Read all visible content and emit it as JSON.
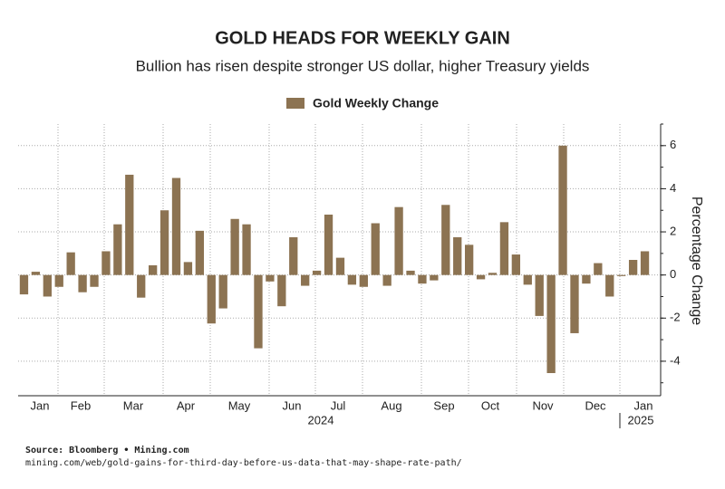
{
  "chart_data": {
    "type": "bar",
    "title": "GOLD HEADS FOR WEEKLY GAIN",
    "subtitle": "Bullion has risen despite stronger US dollar, higher Treasury yields",
    "y_axis_label": "Percentage Change",
    "month_labels": [
      "Jan",
      "Feb",
      "Mar",
      "Apr",
      "May",
      "Jun",
      "Jul",
      "Aug",
      "Sep",
      "Oct",
      "Nov",
      "Dec",
      "Jan"
    ],
    "year_labels": [
      "2024",
      "2025"
    ],
    "categories": [
      null,
      null,
      null,
      null,
      null,
      null,
      null,
      null,
      null,
      null,
      null,
      null,
      null,
      null,
      null,
      null,
      null,
      null,
      null,
      null,
      null,
      null,
      null,
      null,
      null,
      null,
      null,
      null,
      null,
      null,
      null,
      null,
      null,
      null,
      null,
      null,
      null,
      null,
      null,
      null,
      null,
      null,
      null,
      null,
      null,
      null,
      null,
      null,
      null,
      null,
      null,
      null,
      null,
      null
    ],
    "series": [
      {
        "name": "Gold Weekly Change",
        "color": "#8c7352",
        "values": [
          -0.9,
          0.15,
          -1.0,
          -0.55,
          1.05,
          -0.8,
          -0.55,
          1.1,
          2.35,
          4.65,
          -1.05,
          0.45,
          3.0,
          4.5,
          0.6,
          2.05,
          -2.25,
          -1.55,
          2.6,
          2.35,
          -3.4,
          -0.3,
          -1.45,
          1.75,
          -0.5,
          0.2,
          2.8,
          0.8,
          -0.45,
          -0.55,
          2.4,
          -0.5,
          3.15,
          0.2,
          -0.4,
          -0.25,
          3.25,
          1.75,
          1.4,
          -0.2,
          0.1,
          2.45,
          0.95,
          -0.45,
          -1.9,
          -4.55,
          6.0,
          -2.7,
          -0.4,
          0.55,
          -1.0,
          -0.05,
          0.7,
          1.1
        ]
      }
    ],
    "ylim": [
      -5.6,
      7
    ],
    "yticks": [
      -4,
      -2,
      0,
      2,
      4,
      6
    ],
    "grid": true,
    "legend": "top",
    "source": "Source: Bloomberg • Mining.com",
    "url": "mining.com/web/gold-gains-for-third-day-before-us-data-that-may-shape-rate-path/"
  }
}
